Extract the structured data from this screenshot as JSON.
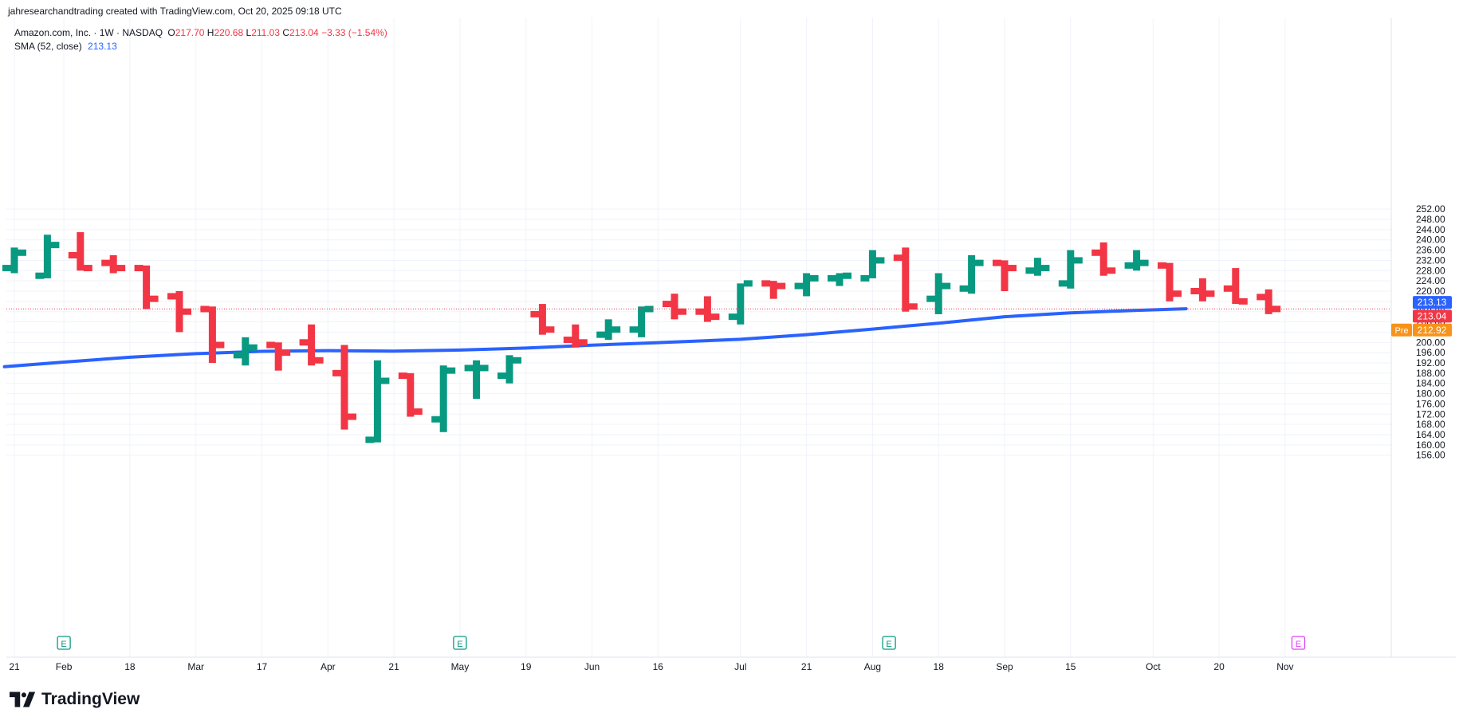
{
  "header": {
    "credit": "jahresearchandtrading created with TradingView.com, Oct 20, 2025 09:18 UTC"
  },
  "legend": {
    "symbol": "Amazon.com, Inc. · 1W · NASDAQ",
    "o_label": "O",
    "o_value": "217.70",
    "h_label": "H",
    "h_value": "220.68",
    "l_label": "L",
    "l_value": "211.03",
    "c_label": "C",
    "c_value": "213.04",
    "change": "−3.33 (−1.54%)",
    "sma_label": "SMA (52, close)",
    "sma_value": "213.13"
  },
  "brand": {
    "name": "TradingView"
  },
  "colors": {
    "up": "#089981",
    "down": "#F23645",
    "sma": "#2962FF",
    "last_price": "#F23645",
    "premarket": "#F7931A",
    "earnings_past": "#089981",
    "earnings_future": "#E040FB",
    "grid": "#F0F3FA",
    "axis_text": "#131722"
  },
  "chart_data": {
    "type": "ohlc_bar",
    "interval": "1W",
    "y_axis": {
      "position": "right",
      "range": [
        154,
        253
      ],
      "ticks": [
        156,
        160,
        164,
        168,
        172,
        176,
        180,
        184,
        188,
        192,
        196,
        200,
        204,
        208,
        212,
        216,
        220,
        224,
        228,
        232,
        236,
        240,
        244,
        248,
        252
      ]
    },
    "y_tick_labels": [
      "156.00",
      "160.00",
      "164.00",
      "168.00",
      "172.00",
      "176.00",
      "180.00",
      "184.00",
      "188.00",
      "192.00",
      "196.00",
      "200.00",
      "204.00",
      "208.00",
      "212.00",
      "216.00",
      "220.00",
      "224.00",
      "228.00",
      "232.00",
      "236.00",
      "240.00",
      "244.00",
      "248.00",
      "252.00"
    ],
    "x_tick_labels": [
      {
        "label": "21",
        "week": 0
      },
      {
        "label": "Feb",
        "week": 1.5
      },
      {
        "label": "18",
        "week": 3.5
      },
      {
        "label": "Mar",
        "week": 5.5
      },
      {
        "label": "17",
        "week": 7.5
      },
      {
        "label": "Apr",
        "week": 9.5
      },
      {
        "label": "21",
        "week": 11.5
      },
      {
        "label": "May",
        "week": 13.5
      },
      {
        "label": "19",
        "week": 15.5
      },
      {
        "label": "Jun",
        "week": 17.5
      },
      {
        "label": "16",
        "week": 19.5
      },
      {
        "label": "Jul",
        "week": 22
      },
      {
        "label": "21",
        "week": 24
      },
      {
        "label": "Aug",
        "week": 26
      },
      {
        "label": "18",
        "week": 28
      },
      {
        "label": "Sep",
        "week": 30
      },
      {
        "label": "15",
        "week": 32
      },
      {
        "label": "Oct",
        "week": 34.5
      },
      {
        "label": "20",
        "week": 36.5
      },
      {
        "label": "Nov",
        "week": 38.5
      }
    ],
    "bars": [
      {
        "o": 229,
        "h": 237,
        "l": 227,
        "c": 235
      },
      {
        "o": 226,
        "h": 242,
        "l": 225,
        "c": 238
      },
      {
        "o": 234,
        "h": 243,
        "l": 228,
        "c": 229
      },
      {
        "o": 231,
        "h": 234,
        "l": 227,
        "c": 229
      },
      {
        "o": 229,
        "h": 230,
        "l": 213,
        "c": 217
      },
      {
        "o": 218,
        "h": 220,
        "l": 204,
        "c": 212
      },
      {
        "o": 213,
        "h": 214,
        "l": 192,
        "c": 199
      },
      {
        "o": 195,
        "h": 202,
        "l": 191,
        "c": 198
      },
      {
        "o": 199,
        "h": 200,
        "l": 189,
        "c": 196
      },
      {
        "o": 200,
        "h": 207,
        "l": 191,
        "c": 193
      },
      {
        "o": 188,
        "h": 199,
        "l": 166,
        "c": 171
      },
      {
        "o": 162,
        "h": 193,
        "l": 161,
        "c": 185
      },
      {
        "o": 187,
        "h": 188,
        "l": 171,
        "c": 173
      },
      {
        "o": 170,
        "h": 191,
        "l": 165,
        "c": 189
      },
      {
        "o": 190,
        "h": 193,
        "l": 178,
        "c": 190
      },
      {
        "o": 187,
        "h": 195,
        "l": 184,
        "c": 193
      },
      {
        "o": 211,
        "h": 215,
        "l": 203,
        "c": 205
      },
      {
        "o": 201,
        "h": 207,
        "l": 198,
        "c": 200
      },
      {
        "o": 203,
        "h": 209,
        "l": 201,
        "c": 205
      },
      {
        "o": 205,
        "h": 214,
        "l": 202,
        "c": 213
      },
      {
        "o": 215,
        "h": 219,
        "l": 209,
        "c": 212
      },
      {
        "o": 212,
        "h": 218,
        "l": 208,
        "c": 210
      },
      {
        "o": 210,
        "h": 223,
        "l": 207,
        "c": 223
      },
      {
        "o": 223,
        "h": 224,
        "l": 217,
        "c": 222
      },
      {
        "o": 222,
        "h": 227,
        "l": 218,
        "c": 225
      },
      {
        "o": 225,
        "h": 227,
        "l": 222,
        "c": 226
      },
      {
        "o": 225,
        "h": 236,
        "l": 225,
        "c": 232
      },
      {
        "o": 233,
        "h": 237,
        "l": 212,
        "c": 214
      },
      {
        "o": 217,
        "h": 227,
        "l": 211,
        "c": 222
      },
      {
        "o": 221,
        "h": 234,
        "l": 219,
        "c": 231
      },
      {
        "o": 231,
        "h": 232,
        "l": 220,
        "c": 229
      },
      {
        "o": 228,
        "h": 233,
        "l": 226,
        "c": 229
      },
      {
        "o": 223,
        "h": 236,
        "l": 221,
        "c": 232
      },
      {
        "o": 235,
        "h": 239,
        "l": 226,
        "c": 228
      },
      {
        "o": 230,
        "h": 236,
        "l": 228,
        "c": 231
      },
      {
        "o": 230,
        "h": 231,
        "l": 216,
        "c": 219
      },
      {
        "o": 220,
        "h": 225,
        "l": 216,
        "c": 219
      },
      {
        "o": 221,
        "h": 229,
        "l": 215,
        "c": 216
      },
      {
        "o": 217.7,
        "h": 220.68,
        "l": 211.03,
        "c": 213.04
      }
    ],
    "sma_series": {
      "name": "SMA (52, close)",
      "points": [
        {
          "week": -0.3,
          "v": 190.5
        },
        {
          "week": 1.5,
          "v": 192.3
        },
        {
          "week": 3.5,
          "v": 194.2
        },
        {
          "week": 5.5,
          "v": 195.6
        },
        {
          "week": 7.5,
          "v": 196.5
        },
        {
          "week": 9.5,
          "v": 196.8
        },
        {
          "week": 11.5,
          "v": 196.6
        },
        {
          "week": 13.5,
          "v": 197.0
        },
        {
          "week": 15.5,
          "v": 197.8
        },
        {
          "week": 17.5,
          "v": 198.9
        },
        {
          "week": 19.5,
          "v": 199.9
        },
        {
          "week": 22,
          "v": 201.2
        },
        {
          "week": 24,
          "v": 203.0
        },
        {
          "week": 26,
          "v": 205.2
        },
        {
          "week": 28,
          "v": 207.5
        },
        {
          "week": 30,
          "v": 210.0
        },
        {
          "week": 32,
          "v": 211.5
        },
        {
          "week": 34,
          "v": 212.5
        },
        {
          "week": 35.5,
          "v": 213.13
        }
      ]
    },
    "last_price": 213.04,
    "price_labels": [
      {
        "text": "213.13",
        "value": 213.13,
        "color": "#2962FF"
      },
      {
        "text": "213.04",
        "value": 213.04,
        "color": "#F23645"
      },
      {
        "tag": "Pre",
        "text": "212.92",
        "value": 212.92,
        "color": "#F7931A"
      }
    ],
    "earnings_markers": [
      {
        "week": 1.5,
        "letter": "E",
        "future": false
      },
      {
        "week": 13.5,
        "letter": "E",
        "future": false
      },
      {
        "week": 26.5,
        "letter": "E",
        "future": false
      },
      {
        "week": 38.9,
        "letter": "E",
        "future": true
      }
    ]
  }
}
